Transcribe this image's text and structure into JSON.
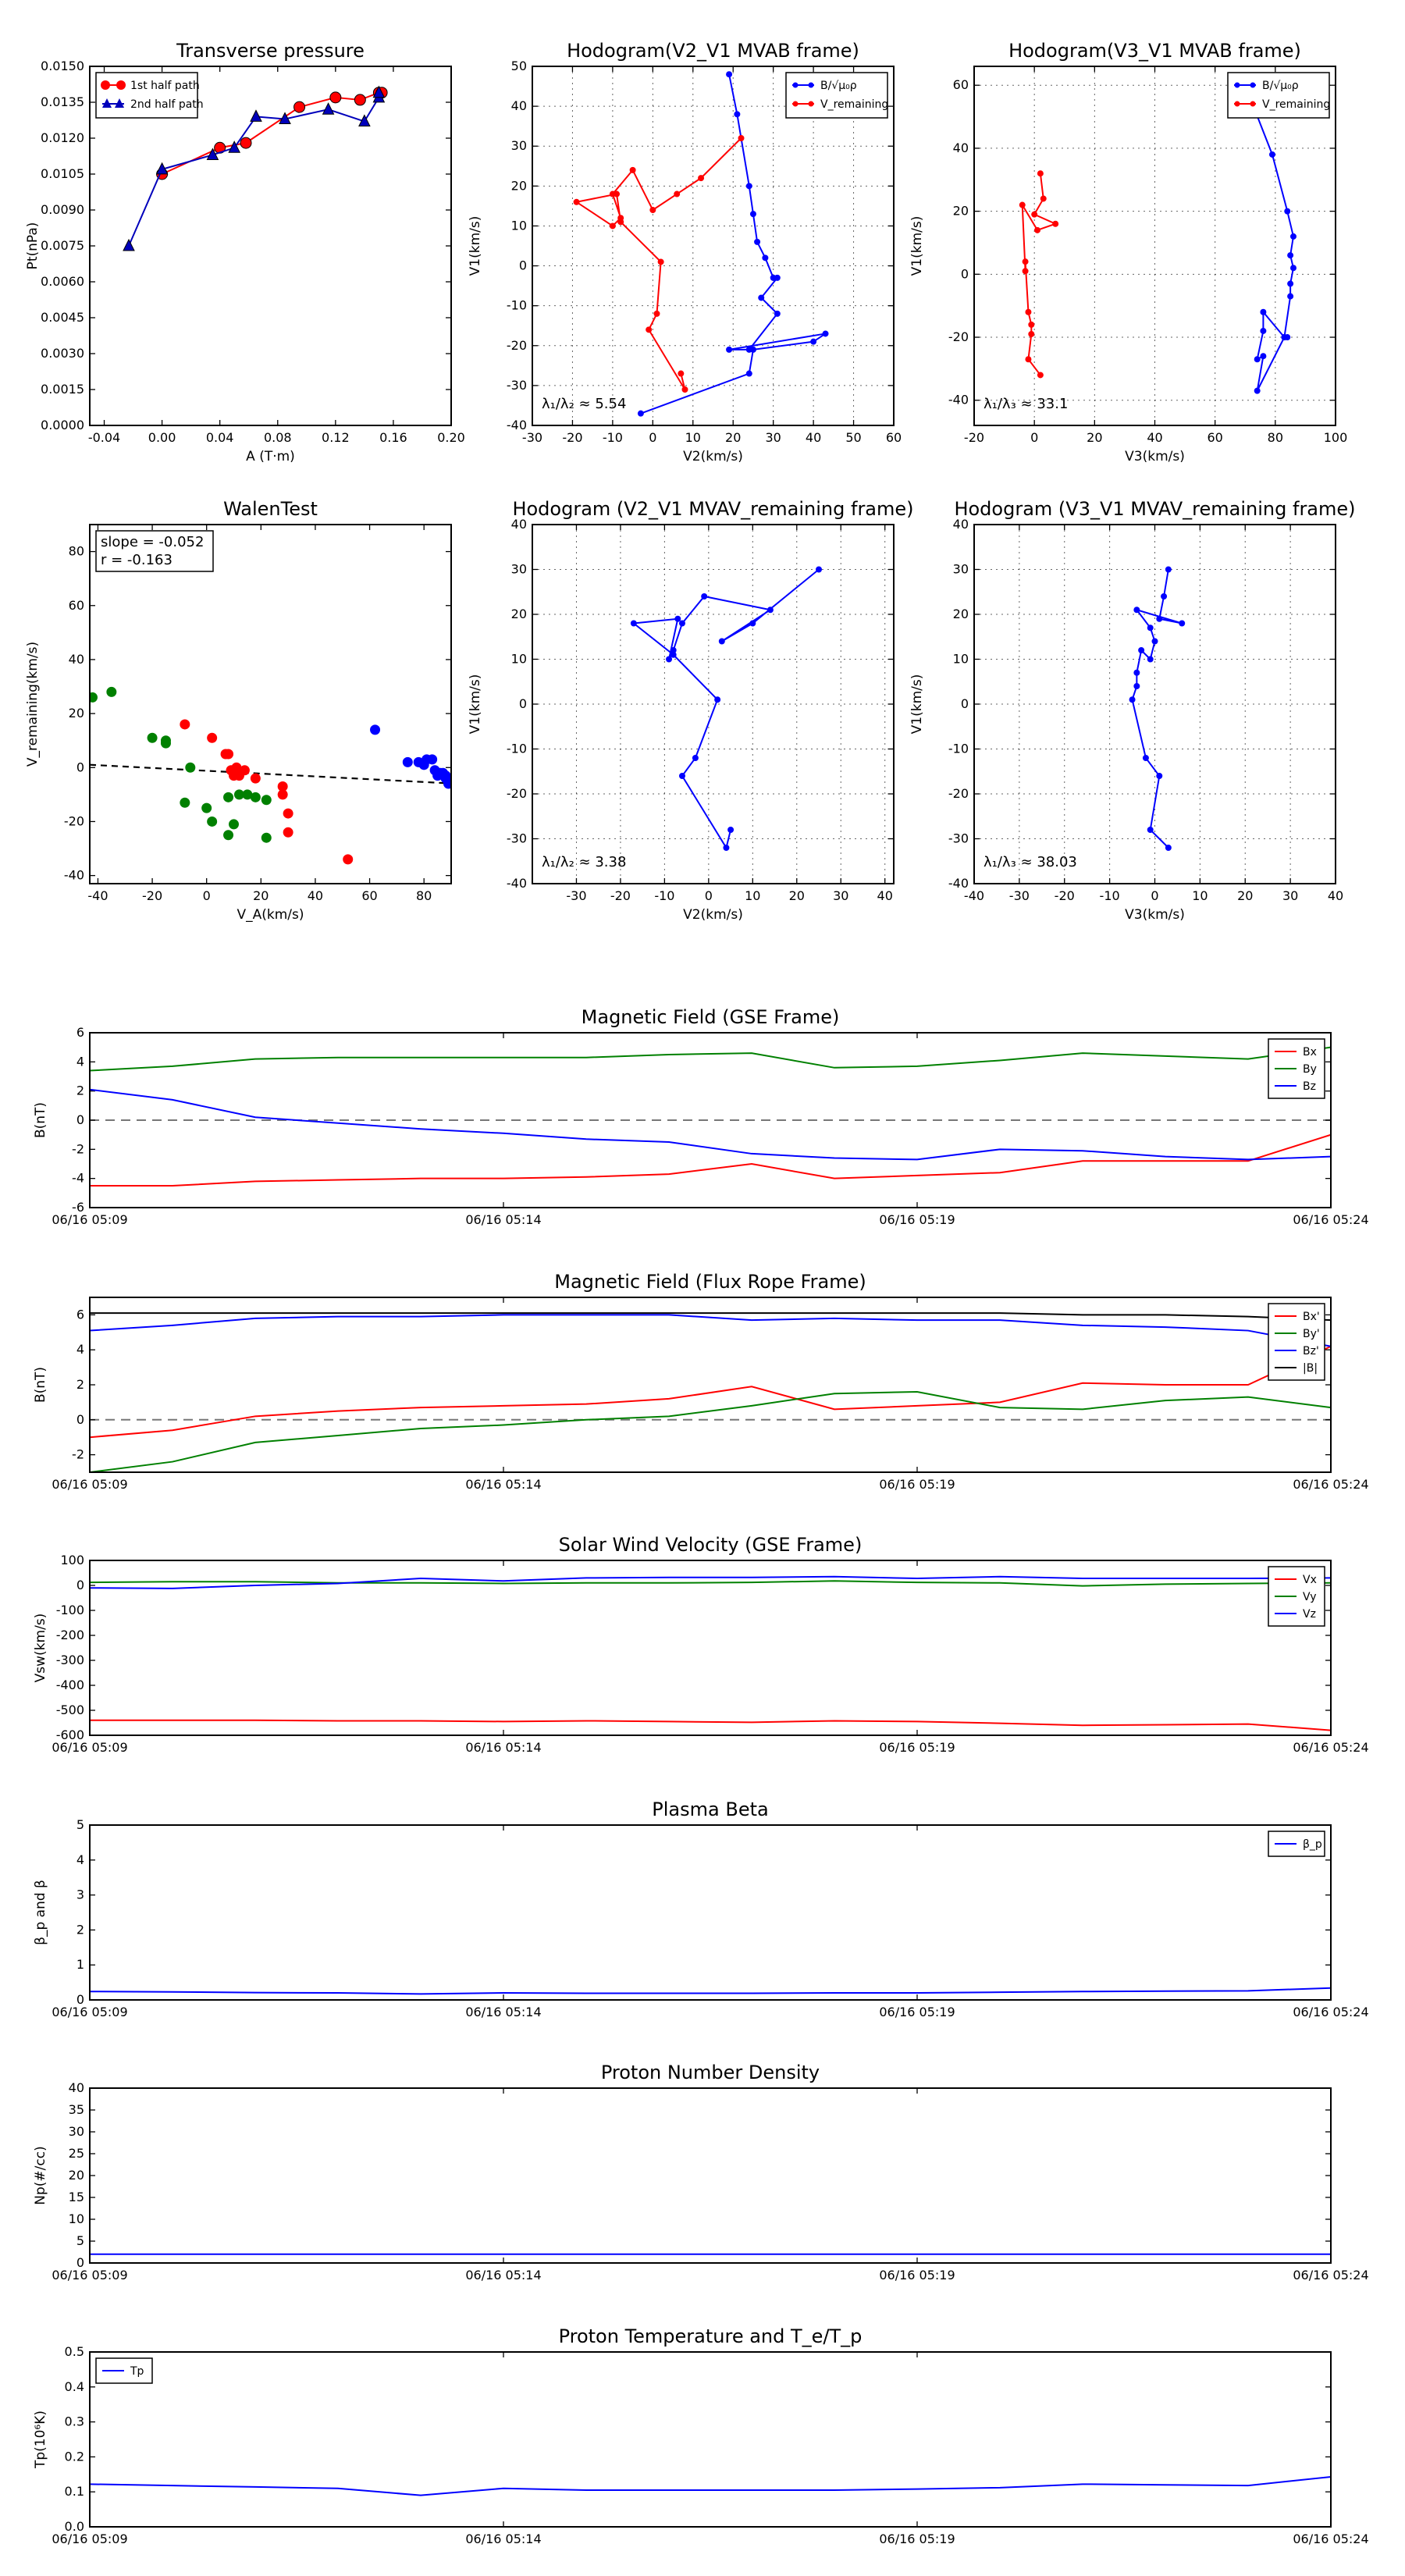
{
  "chart_data": [
    {
      "id": "tp",
      "type": "line",
      "title": "Transverse pressure",
      "xlabel": "A (T·m)",
      "ylabel": "Pt(nPa)",
      "xlim": [
        -0.05,
        0.2
      ],
      "ylim": [
        0.0,
        0.015
      ],
      "xticks": [
        "-0.04",
        "0.00",
        "0.04",
        "0.08",
        "0.12",
        "0.16",
        "0.20"
      ],
      "yticks": [
        "0.0000",
        "0.0015",
        "0.0030",
        "0.0045",
        "0.0060",
        "0.0075",
        "0.0090",
        "0.0105",
        "0.0120",
        "0.0135",
        "0.0150"
      ],
      "legend": "top-left",
      "grid": false,
      "series": [
        {
          "name": "1st half path",
          "color": "#ff0000",
          "marker": "circle",
          "x": [
            0.0,
            0.04,
            0.058,
            0.095,
            0.12,
            0.137,
            0.15,
            0.152
          ],
          "y": [
            0.0105,
            0.0116,
            0.0118,
            0.0133,
            0.0137,
            0.0136,
            0.0139,
            0.0139
          ]
        },
        {
          "name": "2nd half path",
          "color": "#0000bb",
          "marker": "triangle",
          "x": [
            -0.023,
            0.0,
            0.035,
            0.05,
            0.065,
            0.085,
            0.115,
            0.14,
            0.15,
            0.15
          ],
          "y": [
            0.0075,
            0.0107,
            0.0113,
            0.0116,
            0.0129,
            0.0128,
            0.0132,
            0.0127,
            0.0137,
            0.0139
          ]
        }
      ]
    },
    {
      "id": "h1",
      "type": "line",
      "title": "Hodogram(V2_V1 MVAB frame)",
      "xlabel": "V2(km/s)",
      "ylabel": "V1(km/s)",
      "xlim": [
        -30,
        60
      ],
      "ylim": [
        -40,
        50
      ],
      "xticks": [
        "-30",
        "-20",
        "-10",
        "0",
        "10",
        "20",
        "30",
        "40",
        "50",
        "60"
      ],
      "yticks": [
        "-40",
        "-30",
        "-20",
        "-10",
        "0",
        "10",
        "20",
        "30",
        "40",
        "50"
      ],
      "grid": true,
      "legend": "top-right",
      "annotation": "λ₁/λ₂ ≈ 5.54",
      "series": [
        {
          "name": "B/√μ₀ρ",
          "color": "#0000ff",
          "x": [
            19,
            21,
            24,
            25,
            26,
            28,
            30,
            31,
            27,
            31,
            24,
            19,
            43,
            40,
            25,
            24,
            -3
          ],
          "y": [
            48,
            38,
            20,
            13,
            6,
            2,
            -3,
            -3,
            -8,
            -12,
            -21,
            -21,
            -17,
            -19,
            -21,
            -27,
            -37
          ]
        },
        {
          "name": "V_remaining",
          "color": "#ff0000",
          "x": [
            22,
            12,
            6,
            0,
            -5,
            -10,
            -8,
            -10,
            -19,
            -9,
            -8,
            2,
            1,
            -1,
            8,
            7
          ],
          "y": [
            32,
            22,
            18,
            14,
            24,
            18,
            12,
            10,
            16,
            18,
            11,
            1,
            -12,
            -16,
            -31,
            -27
          ]
        }
      ]
    },
    {
      "id": "h2",
      "type": "line",
      "title": "Hodogram(V3_V1 MVAB frame)",
      "xlabel": "V3(km/s)",
      "ylabel": "V1(km/s)",
      "xlim": [
        -20,
        100
      ],
      "ylim": [
        -48,
        66
      ],
      "xticks": [
        "-20",
        "0",
        "20",
        "40",
        "60",
        "80",
        "100"
      ],
      "yticks": [
        "-40",
        "-20",
        "0",
        "20",
        "40",
        "60"
      ],
      "grid": true,
      "legend": "top-right",
      "annotation": "λ₁/λ₃ ≈ 33.1",
      "series": [
        {
          "name": "B/√μ₀ρ",
          "color": "#0000ff",
          "x": [
            70,
            79,
            84,
            86,
            85,
            86,
            85,
            85,
            83,
            76,
            76,
            74,
            76,
            74,
            83,
            84
          ],
          "y": [
            60,
            38,
            20,
            12,
            6,
            2,
            -3,
            -7,
            -20,
            -12,
            -18,
            -27,
            -26,
            -37,
            -20,
            -20
          ]
        },
        {
          "name": "V_remaining",
          "color": "#ff0000",
          "x": [
            2,
            3,
            0,
            7,
            1,
            -4,
            -3,
            -3,
            -2,
            -1,
            -1,
            -2,
            2
          ],
          "y": [
            32,
            24,
            19,
            16,
            14,
            22,
            1,
            4,
            -12,
            -16,
            -19,
            -27,
            -32
          ]
        }
      ]
    },
    {
      "id": "walen",
      "type": "scatter",
      "title": "WalenTest",
      "xlabel": "V_A(km/s)",
      "ylabel": "V_remaining(km/s)",
      "xlim": [
        -43,
        90
      ],
      "ylim": [
        -43,
        90
      ],
      "xticks": [
        "-40",
        "-20",
        "0",
        "20",
        "40",
        "60",
        "80"
      ],
      "yticks": [
        "-40",
        "-20",
        "0",
        "20",
        "40",
        "60",
        "80"
      ],
      "annotation_lines": [
        "slope = -0.052",
        "r = -0.163"
      ],
      "fit": {
        "slope": -0.052,
        "intercept": -1.2
      },
      "series": [
        {
          "name": "",
          "color": "#008000",
          "x": [
            -42,
            -35,
            -20,
            -15,
            -15,
            -8,
            -6,
            0,
            2,
            8,
            8,
            10,
            12,
            15,
            18,
            22,
            22
          ],
          "y": [
            26,
            28,
            11,
            10,
            9,
            -13,
            0,
            -15,
            -20,
            -11,
            -25,
            -21,
            -10,
            -10,
            -11,
            -26,
            -12
          ]
        },
        {
          "name": "",
          "color": "#ff0000",
          "x": [
            -8,
            2,
            7,
            8,
            9,
            10,
            11,
            12,
            12,
            14,
            18,
            28,
            28,
            30,
            30,
            52
          ],
          "y": [
            16,
            11,
            5,
            5,
            -1,
            -3,
            0,
            -2,
            -3,
            -1,
            -4,
            -10,
            -7,
            -17,
            -24,
            -34
          ]
        },
        {
          "name": "",
          "color": "#0000ff",
          "x": [
            62,
            74,
            78,
            80,
            81,
            83,
            84,
            85,
            86,
            87,
            88,
            89,
            88
          ],
          "y": [
            14,
            2,
            2,
            1,
            3,
            3,
            -1,
            -3,
            -2,
            -2,
            -4,
            -6,
            -3
          ]
        }
      ]
    },
    {
      "id": "h3",
      "type": "line",
      "title": "Hodogram (V2_V1 MVAV_remaining frame)",
      "xlabel": "V2(km/s)",
      "ylabel": "V1(km/s)",
      "xlim": [
        -40,
        42
      ],
      "ylim": [
        -40,
        40
      ],
      "xticks": [
        "-30",
        "-20",
        "-10",
        "0",
        "10",
        "20",
        "30",
        "40"
      ],
      "yticks": [
        "-40",
        "-30",
        "-20",
        "-10",
        "0",
        "10",
        "20",
        "30",
        "40"
      ],
      "grid": true,
      "annotation": "λ₁/λ₂ ≈ 3.38",
      "series": [
        {
          "name": "",
          "color": "#0000ff",
          "x": [
            25,
            10,
            3,
            14,
            -1,
            -6,
            -8,
            -9,
            -7,
            -17,
            -8,
            2,
            -3,
            -6,
            4,
            5
          ],
          "y": [
            30,
            18,
            14,
            21,
            24,
            18,
            12,
            10,
            19,
            18,
            11,
            1,
            -12,
            -16,
            -32,
            -28
          ]
        }
      ]
    },
    {
      "id": "h4",
      "type": "line",
      "title": "Hodogram (V3_V1 MVAV_remaining frame)",
      "xlabel": "V3(km/s)",
      "ylabel": "V1(km/s)",
      "xlim": [
        -40,
        40
      ],
      "ylim": [
        -40,
        40
      ],
      "xticks": [
        "-40",
        "-30",
        "-20",
        "-10",
        "0",
        "10",
        "20",
        "30",
        "40"
      ],
      "yticks": [
        "-40",
        "-30",
        "-20",
        "-10",
        "0",
        "10",
        "20",
        "30",
        "40"
      ],
      "grid": true,
      "annotation": "λ₁/λ₃ ≈ 38.03",
      "series": [
        {
          "name": "",
          "color": "#0000ff",
          "x": [
            3,
            2,
            1,
            6,
            -4,
            -1,
            0,
            -1,
            -3,
            -4,
            -4,
            -5,
            -2,
            1,
            -1,
            3
          ],
          "y": [
            30,
            24,
            19,
            18,
            21,
            17,
            14,
            10,
            12,
            7,
            4,
            1,
            -12,
            -16,
            -28,
            -32
          ]
        }
      ]
    },
    {
      "id": "mag_gse",
      "type": "line",
      "title": "Magnetic Field (GSE Frame)",
      "ylabel": "B(nT)",
      "ylim": [
        -6,
        6
      ],
      "yticks": [
        "-6",
        "-4",
        "-2",
        "0",
        "2",
        "4",
        "6"
      ],
      "xticks": [
        "06/16 05:09",
        "06/16 05:14",
        "06/16 05:19",
        "06/16 05:24"
      ],
      "legend": "top-right",
      "zero_line": true,
      "series": [
        {
          "name": "Bx",
          "color": "#ff0000",
          "values": [
            -4.5,
            -4.5,
            -4.2,
            -4.1,
            -4.0,
            -4.0,
            -3.9,
            -3.7,
            -3.0,
            -4.0,
            -3.8,
            -3.6,
            -2.8,
            -2.8,
            -2.8,
            -1.0
          ]
        },
        {
          "name": "By",
          "color": "#008000",
          "values": [
            3.4,
            3.7,
            4.2,
            4.3,
            4.3,
            4.3,
            4.3,
            4.5,
            4.6,
            3.6,
            3.7,
            4.1,
            4.6,
            4.4,
            4.2,
            5.0
          ]
        },
        {
          "name": "Bz",
          "color": "#0000ff",
          "values": [
            2.1,
            1.4,
            0.2,
            -0.2,
            -0.6,
            -0.9,
            -1.3,
            -1.5,
            -2.3,
            -2.6,
            -2.7,
            -2.0,
            -2.1,
            -2.5,
            -2.7,
            -2.5
          ]
        }
      ]
    },
    {
      "id": "mag_fr",
      "type": "line",
      "title": "Magnetic Field (Flux Rope Frame)",
      "ylabel": "B(nT)",
      "ylim": [
        -3,
        7
      ],
      "yticks": [
        "-2",
        "0",
        "2",
        "4",
        "6"
      ],
      "xticks": [
        "06/16 05:09",
        "06/16 05:14",
        "06/16 05:19",
        "06/16 05:24"
      ],
      "legend": "top-right",
      "zero_line": true,
      "series": [
        {
          "name": "Bx'",
          "color": "#ff0000",
          "values": [
            -1.0,
            -0.6,
            0.2,
            0.5,
            0.7,
            0.8,
            0.9,
            1.2,
            1.9,
            0.6,
            0.8,
            1.0,
            2.1,
            2.0,
            2.0,
            4.2
          ]
        },
        {
          "name": "By'",
          "color": "#008000",
          "values": [
            -3.0,
            -2.4,
            -1.3,
            -0.9,
            -0.5,
            -0.3,
            0.0,
            0.2,
            0.8,
            1.5,
            1.6,
            0.7,
            0.6,
            1.1,
            1.3,
            0.7
          ]
        },
        {
          "name": "Bz'",
          "color": "#0000ff",
          "values": [
            5.1,
            5.4,
            5.8,
            5.9,
            5.9,
            6.0,
            6.0,
            6.0,
            5.7,
            5.8,
            5.7,
            5.7,
            5.4,
            5.3,
            5.1,
            4.2
          ]
        },
        {
          "name": "|B|",
          "color": "#000000",
          "values": [
            6.1,
            6.1,
            6.1,
            6.1,
            6.1,
            6.1,
            6.1,
            6.1,
            6.1,
            6.1,
            6.1,
            6.1,
            6.0,
            6.0,
            5.9,
            5.7
          ]
        }
      ]
    },
    {
      "id": "vsw",
      "type": "line",
      "title": "Solar Wind Velocity (GSE Frame)",
      "ylabel": "Vsw(km/s)",
      "ylim": [
        -600,
        100
      ],
      "yticks": [
        "-600",
        "-500",
        "-400",
        "-300",
        "-200",
        "-100",
        "0",
        "100"
      ],
      "xticks": [
        "06/16 05:09",
        "06/16 05:14",
        "06/16 05:19",
        "06/16 05:24"
      ],
      "legend": "top-right",
      "series": [
        {
          "name": "Vx",
          "color": "#ff0000",
          "values": [
            -540,
            -540,
            -540,
            -542,
            -542,
            -545,
            -542,
            -545,
            -548,
            -542,
            -545,
            -552,
            -560,
            -558,
            -555,
            -580
          ]
        },
        {
          "name": "Vy",
          "color": "#008000",
          "values": [
            12,
            15,
            15,
            10,
            10,
            8,
            10,
            10,
            12,
            18,
            12,
            10,
            -2,
            5,
            8,
            10
          ]
        },
        {
          "name": "Vz",
          "color": "#0000ff",
          "values": [
            -10,
            -12,
            0,
            8,
            28,
            18,
            30,
            32,
            32,
            35,
            28,
            35,
            28,
            28,
            28,
            30
          ]
        }
      ]
    },
    {
      "id": "beta",
      "type": "line",
      "title": "Plasma Beta",
      "ylabel": "β_p and β",
      "ylim": [
        0,
        5
      ],
      "yticks": [
        "0",
        "1",
        "2",
        "3",
        "4",
        "5"
      ],
      "xticks": [
        "06/16 05:09",
        "06/16 05:14",
        "06/16 05:19",
        "06/16 05:24"
      ],
      "legend": "top-right",
      "series": [
        {
          "name": "β_p",
          "color": "#0000ff",
          "values": [
            0.24,
            0.23,
            0.21,
            0.2,
            0.17,
            0.2,
            0.19,
            0.19,
            0.19,
            0.2,
            0.2,
            0.22,
            0.24,
            0.25,
            0.26,
            0.34
          ]
        }
      ]
    },
    {
      "id": "np",
      "type": "line",
      "title": "Proton Number Density",
      "ylabel": "Np(#/cc)",
      "ylim": [
        0,
        40
      ],
      "yticks": [
        "0",
        "5",
        "10",
        "15",
        "20",
        "25",
        "30",
        "35",
        "40"
      ],
      "xticks": [
        "06/16 05:09",
        "06/16 05:14",
        "06/16 05:19",
        "06/16 05:24"
      ],
      "series": [
        {
          "name": "",
          "color": "#0000ff",
          "values": [
            2.0,
            2.0,
            2.0,
            2.0,
            2.0,
            2.0,
            2.0,
            2.0,
            2.0,
            2.0,
            2.0,
            2.0,
            2.0,
            2.0,
            2.0,
            2.0
          ]
        }
      ]
    },
    {
      "id": "tp_temp",
      "type": "line",
      "title": "Proton Temperature and T_e/T_p",
      "ylabel": "Tp(10⁶K)",
      "ylim": [
        0,
        0.5
      ],
      "yticks": [
        "0.0",
        "0.1",
        "0.2",
        "0.3",
        "0.4",
        "0.5"
      ],
      "xticks": [
        "06/16 05:09",
        "06/16 05:14",
        "06/16 05:19",
        "06/16 05:24"
      ],
      "legend": "top-left",
      "series": [
        {
          "name": "Tp",
          "color": "#0000ff",
          "values": [
            0.122,
            0.118,
            0.114,
            0.11,
            0.09,
            0.11,
            0.105,
            0.105,
            0.105,
            0.105,
            0.108,
            0.112,
            0.122,
            0.12,
            0.118,
            0.143
          ]
        }
      ]
    }
  ]
}
